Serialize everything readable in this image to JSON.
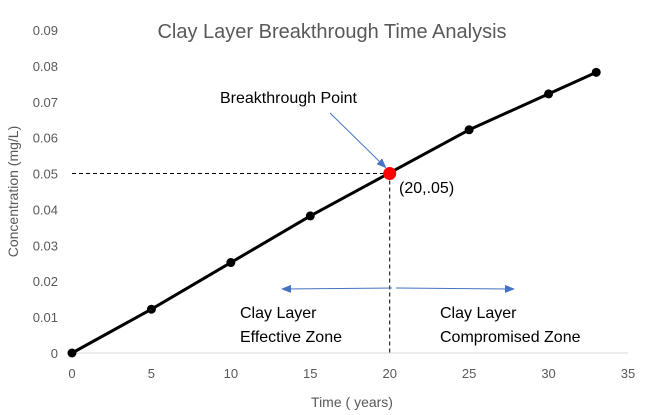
{
  "chart_data": {
    "type": "line",
    "title": "Clay Layer Breakthrough Time Analysis",
    "xlabel": "Time ( years)",
    "ylabel": "Concentration (mg/L)",
    "xlim": [
      0,
      35
    ],
    "ylim": [
      0,
      0.09
    ],
    "x_ticks": [
      "0",
      "5",
      "10",
      "15",
      "20",
      "25",
      "30",
      "35"
    ],
    "y_ticks": [
      "0",
      "0.01",
      "0.02",
      "0.03",
      "0.04",
      "0.05",
      "0.06",
      "0.07",
      "0.08",
      "0.09"
    ],
    "grid": false,
    "legend": false,
    "series": [
      {
        "x": [
          0,
          5,
          10,
          15,
          20,
          25,
          30,
          33
        ],
        "y": [
          0.0,
          0.0122,
          0.0252,
          0.0382,
          0.0502,
          0.0622,
          0.0722,
          0.0782
        ],
        "color": "#000000"
      }
    ],
    "highlight_point": {
      "x": 20,
      "y": 0.05,
      "color": "#ff0000",
      "label": "(20,.05)"
    },
    "annotations": {
      "breakthrough_label": "Breakthrough Point",
      "effective_line1": "Clay Layer",
      "effective_line2": "Effective Zone",
      "compromised_line1": "Clay Layer",
      "compromised_line2": "Compromised Zone"
    },
    "arrow_color": "#4472c4"
  }
}
